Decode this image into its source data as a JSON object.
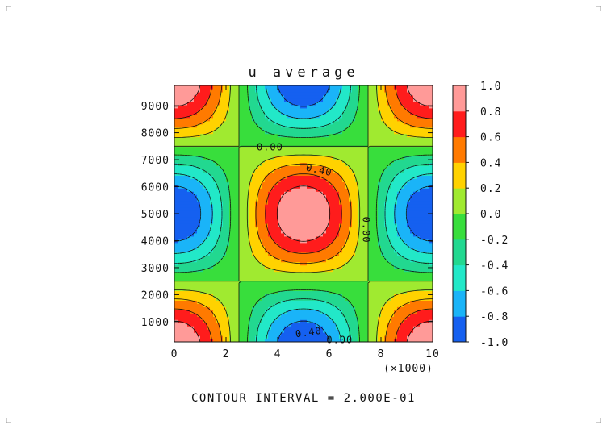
{
  "chart_data": {
    "type": "heatmap",
    "title": "u average",
    "footer": "CONTOUR INTERVAL = 2.000E-01",
    "x_unit_label": "(×1000)",
    "x_ticks": [
      "0",
      "2",
      "4",
      "6",
      "8",
      "10"
    ],
    "x_tick_values": [
      0,
      2000,
      4000,
      6000,
      8000,
      10000
    ],
    "y_ticks": [
      "1000",
      "2000",
      "3000",
      "4000",
      "5000",
      "6000",
      "7000",
      "8000",
      "9000"
    ],
    "y_tick_values": [
      1000,
      2000,
      3000,
      4000,
      5000,
      6000,
      7000,
      8000,
      9000
    ],
    "xlim": [
      0,
      10000
    ],
    "ylim": [
      250,
      9750
    ],
    "colorbar": {
      "ticks": [
        "1.0",
        "0.8",
        "0.6",
        "0.4",
        "0.2",
        "0.0",
        "-0.2",
        "-0.4",
        "-0.6",
        "-0.8",
        "-1.0"
      ],
      "levels": [
        -1.0,
        -0.8,
        -0.6,
        -0.4,
        -0.2,
        0.0,
        0.2,
        0.4,
        0.6,
        0.8,
        1.0
      ],
      "colors": [
        "#1560f0",
        "#1ab4f8",
        "#22e8c8",
        "#22d890",
        "#38de3c",
        "#a0ea30",
        "#ffd200",
        "#ff7a00",
        "#ff1c1c",
        "#ff9a98"
      ]
    },
    "field": {
      "description_formula": "cos(2*pi*x/10000) * cos(2*pi*y/10000) with zero plateau where |value| small",
      "centers": [
        {
          "x": 5000,
          "y": 5000,
          "value": 1.0
        },
        {
          "x": 0,
          "y": 5000,
          "value": -1.0
        },
        {
          "x": 10000,
          "y": 5000,
          "value": -1.0
        },
        {
          "x": 5000,
          "y": 0,
          "value": -1.0
        },
        {
          "x": 5000,
          "y": 10000,
          "value": -1.0
        },
        {
          "x": 0,
          "y": 0,
          "value": 1.0
        },
        {
          "x": 10000,
          "y": 0,
          "value": 1.0
        },
        {
          "x": 0,
          "y": 10000,
          "value": 1.0
        },
        {
          "x": 10000,
          "y": 10000,
          "value": 1.0
        }
      ]
    },
    "contour_labels": [
      {
        "text": "0.00",
        "x": 3700,
        "y": 7450,
        "rotate": 0
      },
      {
        "text": "0.40",
        "x": 5600,
        "y": 6600,
        "rotate": 12
      },
      {
        "text": "0.00",
        "x": 7400,
        "y": 4400,
        "rotate": 90
      },
      {
        "text": "0.40",
        "x": 5200,
        "y": 590,
        "rotate": -8
      },
      {
        "text": "0.00",
        "x": 6400,
        "y": 310,
        "rotate": 0
      }
    ],
    "colors": {
      "zero_contour": "#111111",
      "negative_contour": "#111111"
    }
  }
}
